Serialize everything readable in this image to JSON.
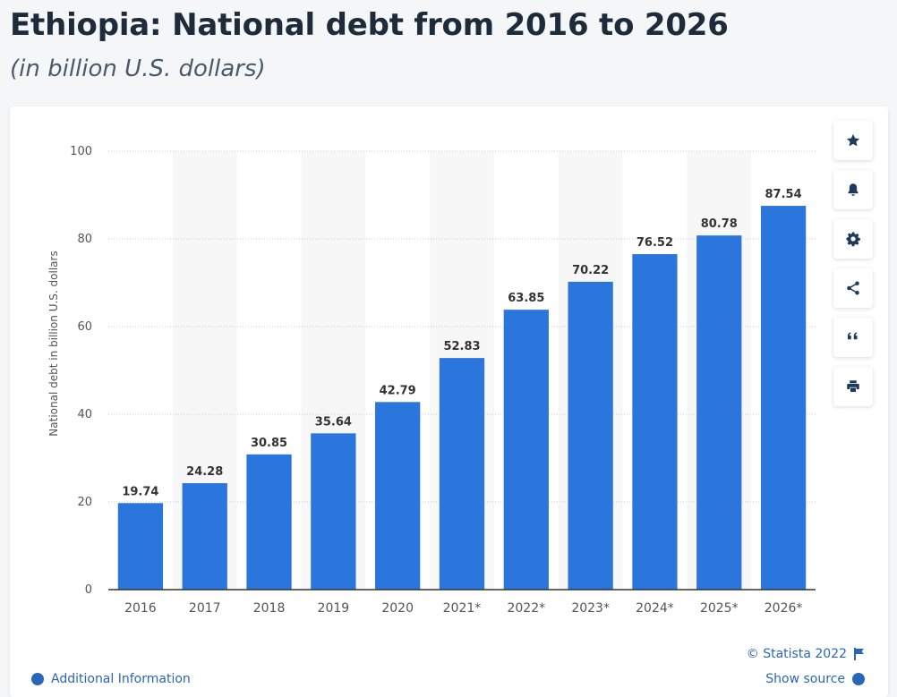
{
  "header": {
    "title": "Ethiopia: National debt from 2016 to 2026",
    "subtitle": "(in billion U.S. dollars)"
  },
  "toolbar": {
    "buttons": [
      {
        "name": "favorite",
        "icon": "star-icon"
      },
      {
        "name": "notification",
        "icon": "bell-icon"
      },
      {
        "name": "settings",
        "icon": "gear-icon"
      },
      {
        "name": "share",
        "icon": "share-icon"
      },
      {
        "name": "cite",
        "icon": "quote-icon"
      },
      {
        "name": "print",
        "icon": "print-icon"
      }
    ]
  },
  "footer": {
    "copyright": "© Statista 2022",
    "additional_info": "Additional Information",
    "show_source": "Show source"
  },
  "colors": {
    "bar": "#2a76dd",
    "alt_band": "#f7f7f7",
    "axis_text": "#555555",
    "grid": "#cccccc"
  },
  "chart_data": {
    "type": "bar",
    "title": "",
    "xlabel": "",
    "ylabel": "National debt in billion U.S. dollars",
    "categories": [
      "2016",
      "2017",
      "2018",
      "2019",
      "2020",
      "2021*",
      "2022*",
      "2023*",
      "2024*",
      "2025*",
      "2026*"
    ],
    "values": [
      19.74,
      24.28,
      30.85,
      35.64,
      42.79,
      52.83,
      63.85,
      70.22,
      76.52,
      80.78,
      87.54
    ],
    "value_labels": [
      "19.74",
      "24.28",
      "30.85",
      "35.64",
      "42.79",
      "52.83",
      "63.85",
      "70.22",
      "76.52",
      "80.78",
      "87.54"
    ],
    "ylim": [
      0,
      100
    ],
    "yticks": [
      0,
      20,
      40,
      60,
      80,
      100
    ],
    "grid": true,
    "legend": "none"
  }
}
